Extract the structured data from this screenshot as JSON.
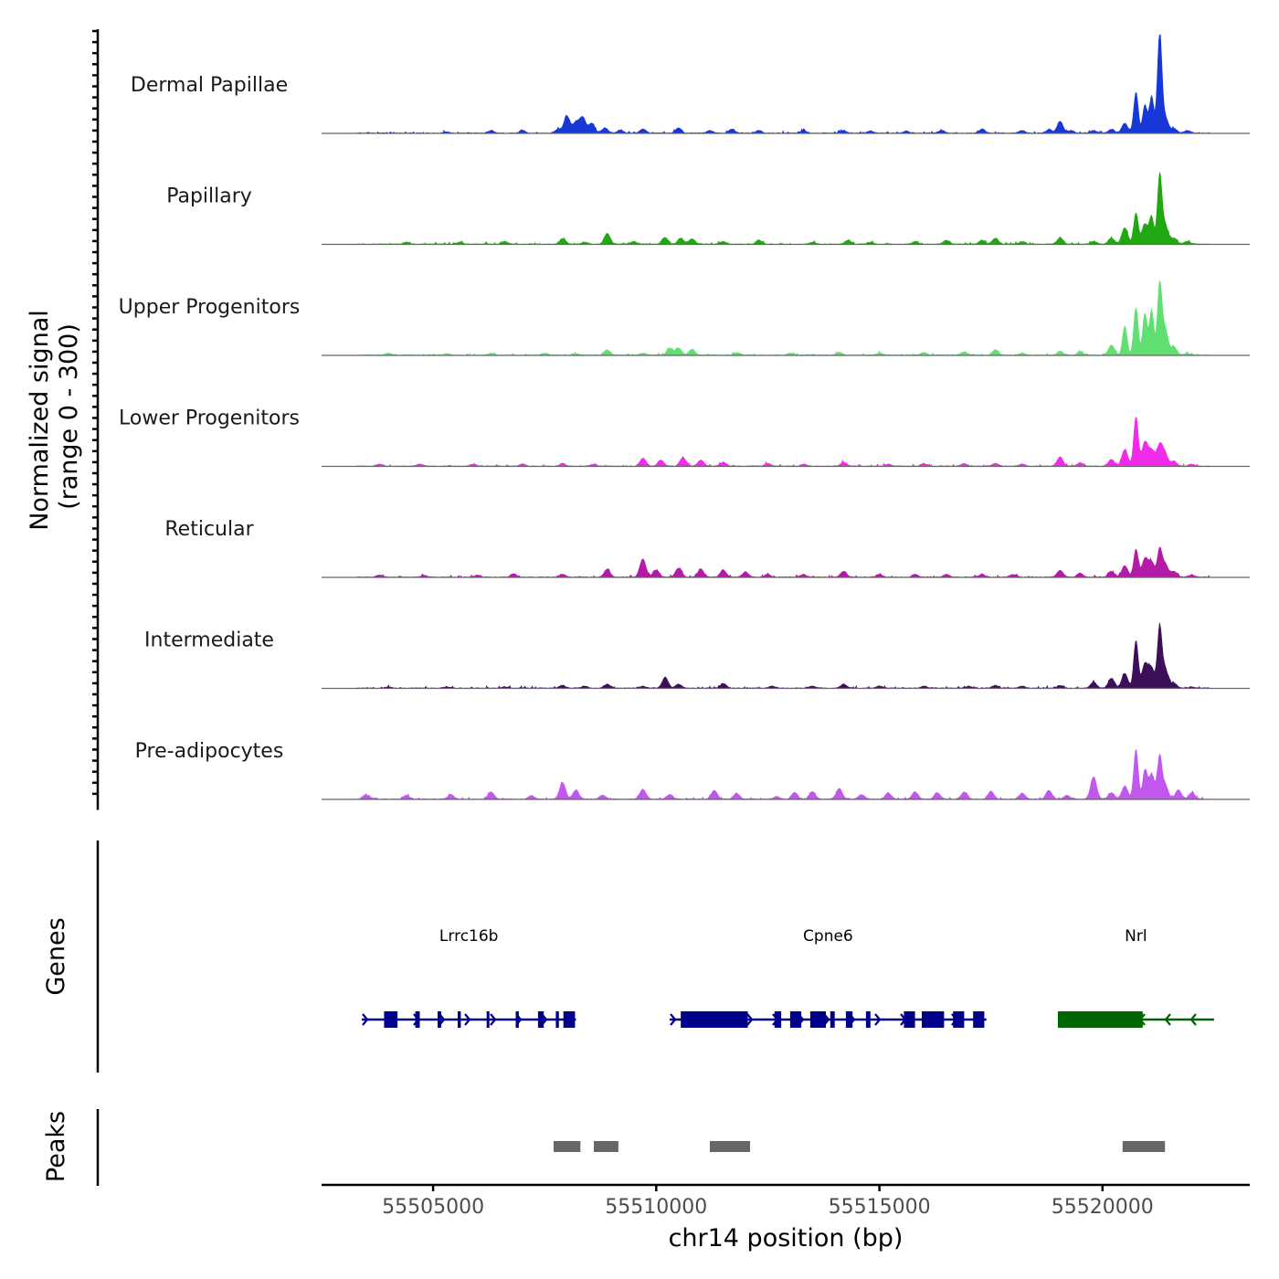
{
  "chart_data": {
    "type": "area",
    "title": "",
    "ylabel_line1": "Normalized signal",
    "ylabel_line2": "(range 0 - 300)",
    "xlabel": "chr14 position (bp)",
    "xlim": [
      55502500,
      55523300
    ],
    "ylim": [
      0,
      300
    ],
    "x_ticks": [
      {
        "value": 55505000,
        "label": "55505000"
      },
      {
        "value": 55510000,
        "label": "55510000"
      },
      {
        "value": 55515000,
        "label": "55515000"
      },
      {
        "value": 55520000,
        "label": "55520000"
      }
    ],
    "signal_range": [
      55503300,
      55522400
    ],
    "series": [
      {
        "name": "Dermal Papillae",
        "color": "#1738d6",
        "peaks": [
          [
            55505300,
            4
          ],
          [
            55506300,
            8
          ],
          [
            55507000,
            8
          ],
          [
            55507800,
            12
          ],
          [
            55508000,
            52
          ],
          [
            55508200,
            32
          ],
          [
            55508350,
            48
          ],
          [
            55508550,
            30
          ],
          [
            55508850,
            16
          ],
          [
            55509200,
            8
          ],
          [
            55509700,
            12
          ],
          [
            55510500,
            16
          ],
          [
            55511200,
            8
          ],
          [
            55511700,
            12
          ],
          [
            55512300,
            8
          ],
          [
            55513300,
            8
          ],
          [
            55514200,
            8
          ],
          [
            55514800,
            6
          ],
          [
            55515600,
            6
          ],
          [
            55516400,
            8
          ],
          [
            55517300,
            12
          ],
          [
            55518200,
            8
          ],
          [
            55518800,
            10
          ],
          [
            55519050,
            36
          ],
          [
            55519300,
            8
          ],
          [
            55519800,
            8
          ],
          [
            55520200,
            12
          ],
          [
            55520500,
            30
          ],
          [
            55520750,
            125
          ],
          [
            55520950,
            85
          ],
          [
            55521100,
            112
          ],
          [
            55521280,
            300
          ],
          [
            55521400,
            50
          ],
          [
            55521600,
            14
          ],
          [
            55521900,
            8
          ]
        ]
      },
      {
        "name": "Papillary",
        "color": "#21a810",
        "peaks": [
          [
            55504400,
            6
          ],
          [
            55505600,
            6
          ],
          [
            55506600,
            8
          ],
          [
            55507900,
            16
          ],
          [
            55508400,
            6
          ],
          [
            55508900,
            32
          ],
          [
            55509500,
            8
          ],
          [
            55510200,
            20
          ],
          [
            55510550,
            18
          ],
          [
            55510800,
            16
          ],
          [
            55511500,
            8
          ],
          [
            55512300,
            12
          ],
          [
            55513500,
            6
          ],
          [
            55514300,
            12
          ],
          [
            55514800,
            6
          ],
          [
            55515800,
            8
          ],
          [
            55516500,
            12
          ],
          [
            55517300,
            12
          ],
          [
            55517600,
            18
          ],
          [
            55518200,
            8
          ],
          [
            55519050,
            20
          ],
          [
            55519800,
            8
          ],
          [
            55520200,
            18
          ],
          [
            55520500,
            50
          ],
          [
            55520750,
            95
          ],
          [
            55520950,
            62
          ],
          [
            55521100,
            82
          ],
          [
            55521280,
            205
          ],
          [
            55521400,
            60
          ],
          [
            55521600,
            18
          ],
          [
            55521900,
            8
          ]
        ]
      },
      {
        "name": "Upper Progenitors",
        "color": "#5fe070",
        "peaks": [
          [
            55504000,
            6
          ],
          [
            55505300,
            4
          ],
          [
            55506300,
            6
          ],
          [
            55507500,
            6
          ],
          [
            55508200,
            4
          ],
          [
            55508900,
            16
          ],
          [
            55509700,
            6
          ],
          [
            55510300,
            20
          ],
          [
            55510500,
            22
          ],
          [
            55510800,
            18
          ],
          [
            55511800,
            8
          ],
          [
            55513000,
            6
          ],
          [
            55514100,
            8
          ],
          [
            55515000,
            6
          ],
          [
            55516000,
            8
          ],
          [
            55516900,
            10
          ],
          [
            55517600,
            16
          ],
          [
            55518200,
            6
          ],
          [
            55519050,
            12
          ],
          [
            55519500,
            10
          ],
          [
            55520200,
            30
          ],
          [
            55520500,
            88
          ],
          [
            55520750,
            145
          ],
          [
            55520950,
            125
          ],
          [
            55521100,
            135
          ],
          [
            55521280,
            210
          ],
          [
            55521400,
            80
          ],
          [
            55521600,
            25
          ],
          [
            55521900,
            6
          ]
        ]
      },
      {
        "name": "Lower Progenitors",
        "color": "#f02cea",
        "peaks": [
          [
            55503800,
            6
          ],
          [
            55504700,
            6
          ],
          [
            55505900,
            6
          ],
          [
            55507000,
            6
          ],
          [
            55507900,
            8
          ],
          [
            55508600,
            6
          ],
          [
            55509700,
            24
          ],
          [
            55510100,
            18
          ],
          [
            55510600,
            26
          ],
          [
            55511000,
            18
          ],
          [
            55511500,
            12
          ],
          [
            55512500,
            8
          ],
          [
            55513300,
            6
          ],
          [
            55514200,
            12
          ],
          [
            55515200,
            6
          ],
          [
            55516000,
            8
          ],
          [
            55516900,
            8
          ],
          [
            55517600,
            8
          ],
          [
            55518200,
            6
          ],
          [
            55519050,
            28
          ],
          [
            55519500,
            10
          ],
          [
            55520200,
            20
          ],
          [
            55520500,
            50
          ],
          [
            55520750,
            150
          ],
          [
            55520950,
            72
          ],
          [
            55521100,
            45
          ],
          [
            55521280,
            62
          ],
          [
            55521400,
            35
          ],
          [
            55521600,
            15
          ],
          [
            55522000,
            6
          ]
        ]
      },
      {
        "name": "Reticular",
        "color": "#b31aa8",
        "peaks": [
          [
            55503800,
            6
          ],
          [
            55504800,
            6
          ],
          [
            55506000,
            6
          ],
          [
            55506800,
            10
          ],
          [
            55507900,
            8
          ],
          [
            55508900,
            24
          ],
          [
            55509700,
            55
          ],
          [
            55510000,
            22
          ],
          [
            55510500,
            28
          ],
          [
            55511000,
            24
          ],
          [
            55511500,
            22
          ],
          [
            55512000,
            16
          ],
          [
            55512500,
            8
          ],
          [
            55513300,
            8
          ],
          [
            55514200,
            18
          ],
          [
            55515000,
            8
          ],
          [
            55515800,
            8
          ],
          [
            55516500,
            8
          ],
          [
            55517300,
            8
          ],
          [
            55518000,
            8
          ],
          [
            55519050,
            20
          ],
          [
            55519500,
            12
          ],
          [
            55520200,
            18
          ],
          [
            55520500,
            35
          ],
          [
            55520750,
            85
          ],
          [
            55520950,
            55
          ],
          [
            55521100,
            45
          ],
          [
            55521280,
            82
          ],
          [
            55521400,
            42
          ],
          [
            55521600,
            18
          ],
          [
            55522000,
            6
          ]
        ]
      },
      {
        "name": "Intermediate",
        "color": "#3e0f59",
        "peaks": [
          [
            55504000,
            4
          ],
          [
            55505300,
            4
          ],
          [
            55506600,
            4
          ],
          [
            55507900,
            8
          ],
          [
            55508400,
            6
          ],
          [
            55508900,
            12
          ],
          [
            55509700,
            6
          ],
          [
            55510200,
            32
          ],
          [
            55510500,
            12
          ],
          [
            55511500,
            14
          ],
          [
            55512600,
            6
          ],
          [
            55513500,
            6
          ],
          [
            55514200,
            12
          ],
          [
            55515000,
            6
          ],
          [
            55516000,
            6
          ],
          [
            55517000,
            6
          ],
          [
            55517600,
            8
          ],
          [
            55518200,
            6
          ],
          [
            55519050,
            8
          ],
          [
            55519800,
            18
          ],
          [
            55520200,
            30
          ],
          [
            55520500,
            45
          ],
          [
            55520750,
            145
          ],
          [
            55520950,
            72
          ],
          [
            55521100,
            60
          ],
          [
            55521280,
            180
          ],
          [
            55521400,
            60
          ],
          [
            55521600,
            15
          ],
          [
            55522000,
            4
          ]
        ]
      },
      {
        "name": "Pre-adipocytes",
        "color": "#c257ee",
        "peaks": [
          [
            55503500,
            14
          ],
          [
            55504400,
            12
          ],
          [
            55505400,
            14
          ],
          [
            55506300,
            22
          ],
          [
            55507200,
            10
          ],
          [
            55507900,
            50
          ],
          [
            55508200,
            28
          ],
          [
            55508800,
            12
          ],
          [
            55509700,
            30
          ],
          [
            55510300,
            14
          ],
          [
            55511300,
            26
          ],
          [
            55511800,
            18
          ],
          [
            55512700,
            8
          ],
          [
            55513100,
            20
          ],
          [
            55513500,
            22
          ],
          [
            55514100,
            32
          ],
          [
            55514600,
            14
          ],
          [
            55515200,
            18
          ],
          [
            55515800,
            22
          ],
          [
            55516300,
            20
          ],
          [
            55516900,
            22
          ],
          [
            55517500,
            24
          ],
          [
            55518200,
            18
          ],
          [
            55518800,
            26
          ],
          [
            55519200,
            12
          ],
          [
            55519800,
            68
          ],
          [
            55520200,
            20
          ],
          [
            55520500,
            40
          ],
          [
            55520750,
            150
          ],
          [
            55520950,
            85
          ],
          [
            55521100,
            75
          ],
          [
            55521280,
            125
          ],
          [
            55521400,
            45
          ],
          [
            55521700,
            28
          ],
          [
            55522000,
            20
          ]
        ]
      }
    ],
    "genes": [
      {
        "name": "Lrrc16b",
        "color": "#00008b",
        "strand": "+",
        "start": 55503400,
        "end": 55508200,
        "exons": [
          [
            55503900,
            55504200
          ],
          [
            55504600,
            55504700
          ],
          [
            55505100,
            55505180
          ],
          [
            55505550,
            55505620
          ],
          [
            55506200,
            55506260
          ],
          [
            55506850,
            55506920
          ],
          [
            55507350,
            55507480
          ],
          [
            55507750,
            55507820
          ],
          [
            55507920,
            55508180
          ]
        ]
      },
      {
        "name": "Cpne6",
        "color": "#00008b",
        "strand": "+",
        "start": 55510300,
        "end": 55517400,
        "exons": [
          [
            55510550,
            55512050
          ],
          [
            55512650,
            55512800
          ],
          [
            55513000,
            55513250
          ],
          [
            55513450,
            55513800
          ],
          [
            55513900,
            55514000
          ],
          [
            55514250,
            55514400
          ],
          [
            55514700,
            55514800
          ],
          [
            55515550,
            55515800
          ],
          [
            55515950,
            55516450
          ],
          [
            55516650,
            55516900
          ],
          [
            55517100,
            55517350
          ]
        ]
      },
      {
        "name": "Nrl",
        "color": "#006400",
        "strand": "-",
        "start": 55519000,
        "end": 55522500,
        "exons": [
          [
            55519000,
            55520900
          ]
        ]
      }
    ],
    "peak_regions": [
      [
        55507700,
        55508300
      ],
      [
        55508600,
        55509150
      ],
      [
        55511200,
        55512100
      ],
      [
        55520450,
        55521400
      ]
    ],
    "track_labels": {
      "genes": "Genes",
      "peaks": "Peaks"
    }
  }
}
